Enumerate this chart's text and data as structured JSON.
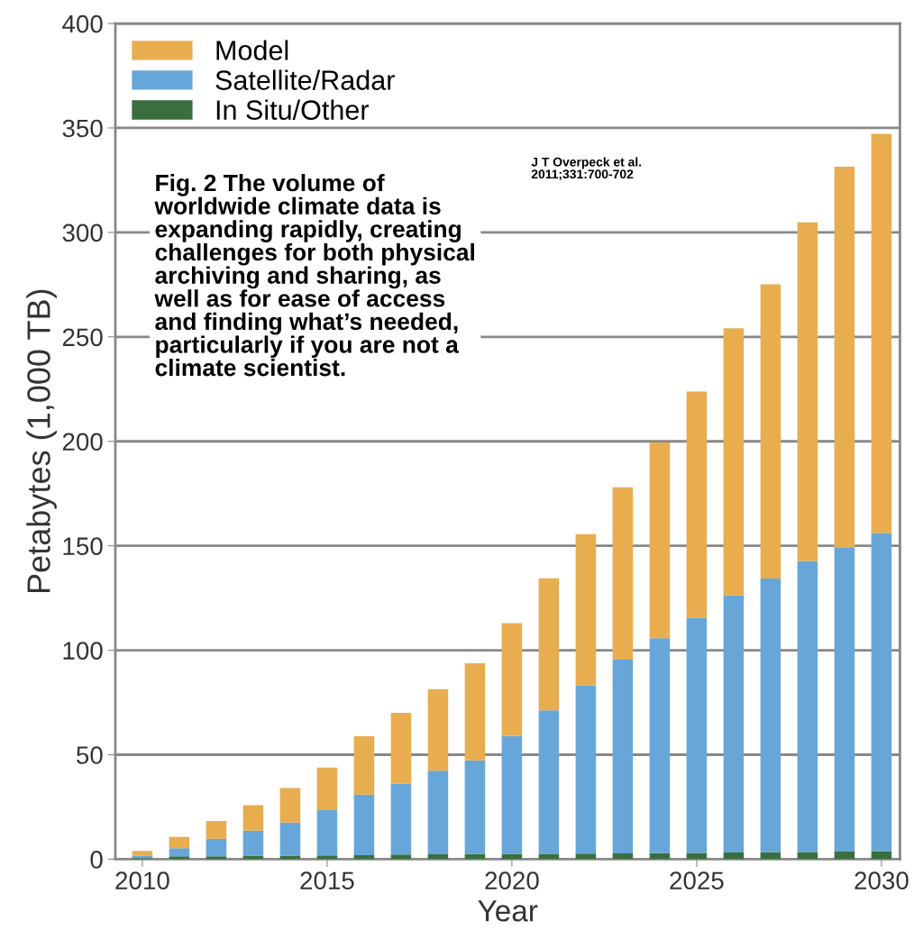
{
  "chart_data": {
    "type": "bar",
    "stacked": true,
    "xlabel": "Year",
    "ylabel": "Petabytes (1,000 TB)",
    "x": [
      2010,
      2011,
      2012,
      2013,
      2014,
      2015,
      2016,
      2017,
      2018,
      2019,
      2020,
      2021,
      2022,
      2023,
      2024,
      2025,
      2026,
      2027,
      2028,
      2029,
      2030
    ],
    "series": [
      {
        "name": "In Situ/Other",
        "color": "#3a6e3f",
        "values": [
          0.5,
          1.4,
          1.4,
          1.7,
          1.7,
          1.8,
          1.9,
          2.2,
          2.3,
          2.4,
          2.5,
          2.6,
          2.7,
          2.8,
          2.9,
          3.0,
          3.2,
          3.3,
          3.4,
          3.6,
          3.8
        ]
      },
      {
        "name": "Satellite/Radar",
        "color": "#67a6d8",
        "values": [
          1.2,
          3.9,
          8.4,
          12,
          15.9,
          21.7,
          29,
          33.9,
          40,
          44.9,
          56.5,
          68.6,
          80.4,
          92.7,
          102.9,
          112.6,
          123,
          131,
          139.3,
          145.7,
          152.3
        ]
      },
      {
        "name": "Model",
        "color": "#e8ad4f",
        "values": [
          2.3,
          5.3,
          8.5,
          12.2,
          16.4,
          20.4,
          27.9,
          34,
          39.1,
          46.5,
          54,
          63.2,
          72.5,
          82.5,
          93.7,
          108.2,
          127.9,
          140.9,
          162.1,
          182.1,
          191.1
        ]
      }
    ],
    "xlim": [
      2009.27,
      2030.5
    ],
    "xticks": [
      2010,
      2015,
      2020,
      2025,
      2030
    ],
    "ylim": [
      0,
      400
    ],
    "yticks": [
      0,
      50,
      100,
      150,
      200,
      250,
      300,
      350,
      400
    ],
    "grid": "y",
    "legend": "top left",
    "annotations": [
      "Fig. 2 The volume of\nworldwide climate data is\nexpanding rapidly, creating\nchallenges for both physical\narchiving and sharing, as\nwell as for ease of access\nand finding what’s needed,\nparticularly if you are not a\nclimate scientist.",
      "J T Overpeck et al.\n2011;331:700-702"
    ]
  }
}
